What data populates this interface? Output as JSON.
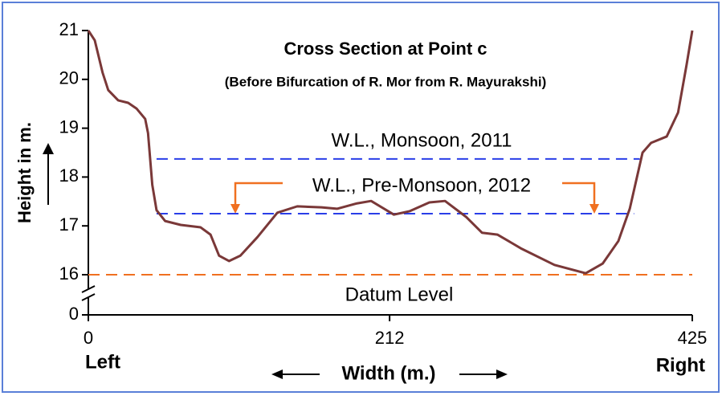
{
  "chart_data": {
    "type": "line",
    "title": "Cross Section at Point c",
    "subtitle": "(Before Bifurcation of R. Mor from R. Mayurakshi)",
    "ylabel": "Height in m.",
    "xlabel": "Width (m.)",
    "annotations": [
      "Left",
      "Right"
    ],
    "xlim": [
      0,
      425
    ],
    "xticks": [
      0,
      212,
      425
    ],
    "ylim": [
      16,
      21
    ],
    "yticks": [
      0,
      16,
      17,
      18,
      19,
      20,
      21
    ],
    "axis_break": true,
    "series": [
      {
        "color": "#7a3838",
        "dashed": false,
        "x": [
          0,
          4.5,
          10,
          14,
          21,
          28,
          34,
          40,
          42,
          45,
          48,
          54,
          65,
          79,
          86,
          92,
          99,
          107,
          119,
          133,
          147,
          164,
          175,
          189,
          199,
          215,
          226,
          240,
          251,
          266,
          277,
          288,
          305,
          328,
          350,
          362,
          373,
          381,
          390,
          396,
          407,
          415,
          421,
          425
        ],
        "values": [
          21,
          20.8,
          20.14,
          19.78,
          19.57,
          19.52,
          19.4,
          19.19,
          18.9,
          17.84,
          17.32,
          17.1,
          17.02,
          16.97,
          16.82,
          16.39,
          16.28,
          16.39,
          16.77,
          17.27,
          17.4,
          17.38,
          17.35,
          17.46,
          17.51,
          17.23,
          17.3,
          17.48,
          17.51,
          17.18,
          16.86,
          16.82,
          16.53,
          16.2,
          16.03,
          16.23,
          16.69,
          17.35,
          18.5,
          18.7,
          18.83,
          19.32,
          20.3,
          21
        ]
      },
      {
        "name": "W.L., Monsoon, 2011",
        "color": "#2a3ee8",
        "dashed": true,
        "x": [
          48,
          388
        ],
        "values": [
          18.37,
          18.37
        ]
      },
      {
        "name": "W.L., Pre-Monsoon, 2012",
        "color": "#2a3ee8",
        "dashed": true,
        "x": [
          48,
          384
        ],
        "values": [
          17.25,
          17.25
        ]
      },
      {
        "name": "Datum Level",
        "color": "#f07020",
        "dashed": true,
        "x": [
          0,
          425
        ],
        "values": [
          16,
          16
        ]
      }
    ]
  }
}
